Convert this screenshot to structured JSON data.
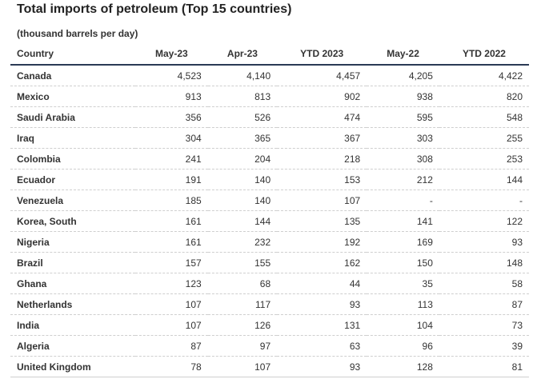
{
  "title": "Total imports of petroleum (Top 15 countries)",
  "subtitle": "(thousand barrels per day)",
  "columns": [
    "Country",
    "May-23",
    "Apr-23",
    "YTD 2023",
    "May-22",
    "YTD 2022"
  ],
  "rows": [
    [
      "Canada",
      "4,523",
      "4,140",
      "4,457",
      "4,205",
      "4,422"
    ],
    [
      "Mexico",
      "913",
      "813",
      "902",
      "938",
      "820"
    ],
    [
      "Saudi Arabia",
      "356",
      "526",
      "474",
      "595",
      "548"
    ],
    [
      "Iraq",
      "304",
      "365",
      "367",
      "303",
      "255"
    ],
    [
      "Colombia",
      "241",
      "204",
      "218",
      "308",
      "253"
    ],
    [
      "Ecuador",
      "191",
      "140",
      "153",
      "212",
      "144"
    ],
    [
      "Venezuela",
      "185",
      "140",
      "107",
      "-",
      "-"
    ],
    [
      "Korea, South",
      "161",
      "144",
      "135",
      "141",
      "122"
    ],
    [
      "Nigeria",
      "161",
      "232",
      "192",
      "169",
      "93"
    ],
    [
      "Brazil",
      "157",
      "155",
      "162",
      "150",
      "148"
    ],
    [
      "Ghana",
      "123",
      "68",
      "44",
      "35",
      "58"
    ],
    [
      "Netherlands",
      "107",
      "117",
      "93",
      "113",
      "87"
    ],
    [
      "India",
      "107",
      "126",
      "131",
      "104",
      "73"
    ],
    [
      "Algeria",
      "87",
      "97",
      "63",
      "96",
      "39"
    ],
    [
      "United Kingdom",
      "78",
      "107",
      "93",
      "128",
      "81"
    ]
  ]
}
